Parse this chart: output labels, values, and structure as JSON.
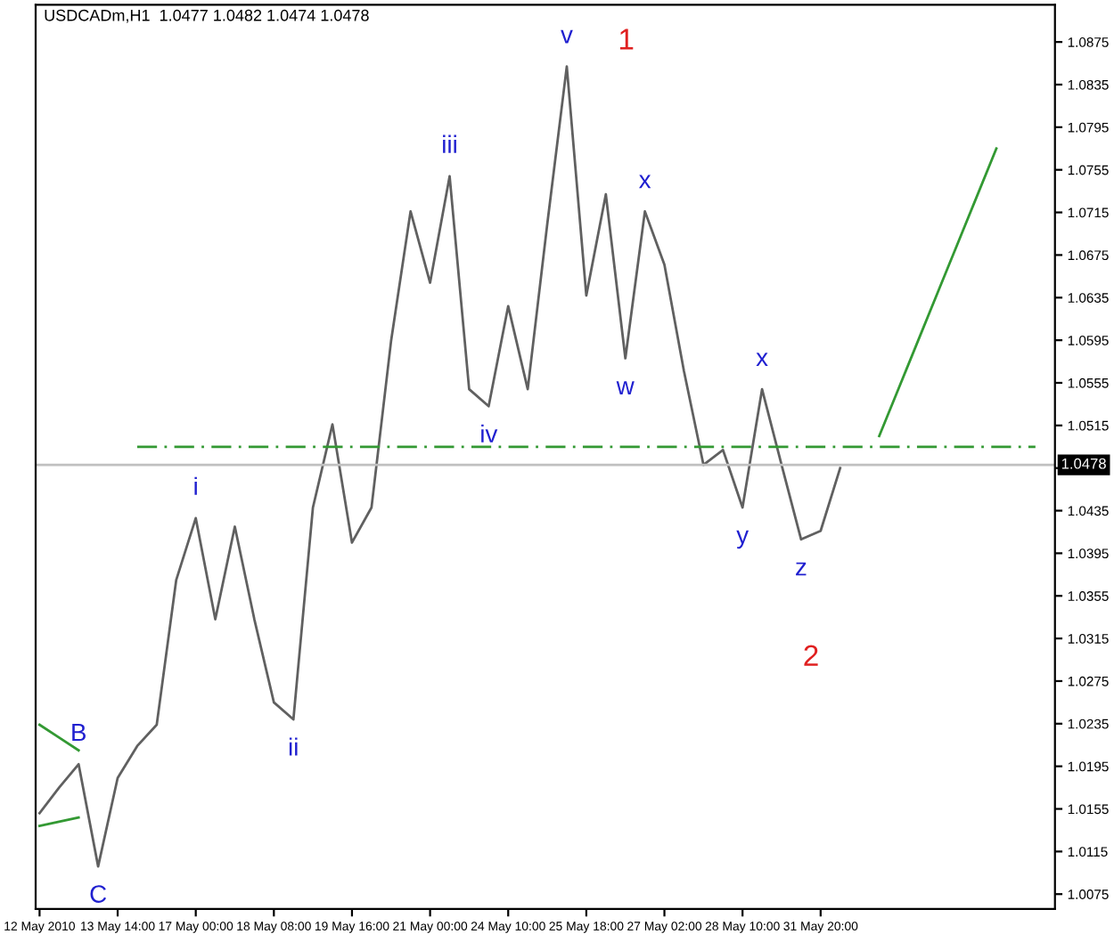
{
  "chart_data": {
    "type": "line",
    "title": "USDCADm,H1  1.0477 1.0482 1.0474 1.0478",
    "categories": [
      "12 May 2010",
      null,
      null,
      null,
      "13 May 14:00",
      null,
      null,
      null,
      "17 May 00:00",
      null,
      null,
      null,
      "18 May 08:00",
      null,
      null,
      null,
      "19 May 16:00",
      null,
      null,
      null,
      "21 May 00:00",
      null,
      null,
      null,
      "24 May 10:00",
      null,
      null,
      null,
      "25 May 18:00",
      null,
      null,
      null,
      "27 May 02:00",
      null,
      null,
      null,
      "28 May 10:00",
      null,
      null,
      null,
      "31 May 20:00",
      null,
      null,
      null,
      null,
      null,
      null,
      null,
      null,
      null,
      null,
      null
    ],
    "series": [
      {
        "color": "#606060",
        "values": [
          1.0151,
          1.0175,
          1.0197,
          1.0101,
          1.0184,
          1.0214,
          1.0234,
          1.037,
          1.0428,
          1.0333,
          1.042,
          1.0333,
          1.0255,
          1.0239,
          1.0438,
          1.0516,
          1.0405,
          1.0438,
          1.0594,
          1.0716,
          1.0649,
          1.0749,
          1.0549,
          1.0533,
          1.0627,
          1.0549,
          1.0704,
          1.0852,
          1.0637,
          1.0732,
          1.0578,
          1.0716,
          1.0666,
          1.0566,
          1.0478,
          1.0492,
          1.0438,
          1.0549,
          1.0478,
          1.0408,
          1.0416,
          1.0475,
          null,
          null,
          null,
          null,
          null,
          null,
          null,
          null,
          null,
          null
        ]
      },
      {
        "color": "#339933",
        "line_style": "dashed",
        "values": [
          null,
          null,
          null,
          null,
          null,
          1.0495,
          1.0495,
          1.0495,
          1.0495,
          1.0495,
          1.0495,
          1.0495,
          1.0495,
          1.0495,
          1.0495,
          1.0495,
          1.0495,
          1.0495,
          1.0495,
          1.0495,
          1.0495,
          1.0495,
          1.0495,
          1.0495,
          1.0495,
          1.0495,
          1.0495,
          1.0495,
          1.0495,
          1.0495,
          1.0495,
          1.0495,
          1.0495,
          1.0495,
          1.0495,
          1.0495,
          1.0495,
          1.0495,
          1.0495,
          1.0495,
          1.0495,
          1.0495,
          1.0495,
          1.0495,
          1.0495,
          1.0495,
          1.0495,
          1.0495,
          1.0495,
          1.0495,
          1.0495,
          1.0495
        ]
      },
      {
        "color": "#339933",
        "values": [
          null,
          null,
          null,
          null,
          null,
          null,
          null,
          null,
          null,
          null,
          null,
          null,
          null,
          null,
          null,
          null,
          null,
          null,
          null,
          null,
          null,
          null,
          null,
          null,
          null,
          null,
          null,
          null,
          null,
          null,
          null,
          null,
          null,
          null,
          null,
          null,
          null,
          null,
          null,
          null,
          null,
          null,
          null,
          1.0505,
          1.055,
          1.0595,
          1.064,
          1.0685,
          1.073,
          1.0775,
          null,
          null
        ]
      },
      {
        "color": "#339933",
        "values": [
          1.0234,
          1.0222,
          1.021,
          null,
          null,
          null,
          null,
          null,
          null,
          null,
          null,
          null,
          null,
          null,
          null,
          null,
          null,
          null,
          null,
          null,
          null,
          null,
          null,
          null,
          null,
          null,
          null,
          null,
          null,
          null,
          null,
          null,
          null,
          null,
          null,
          null,
          null,
          null,
          null,
          null,
          null,
          null,
          null,
          null,
          null,
          null,
          null,
          null,
          null,
          null,
          null,
          null
        ]
      },
      {
        "color": "#339933",
        "values": [
          1.0139,
          1.0143,
          1.0147,
          null,
          null,
          null,
          null,
          null,
          null,
          null,
          null,
          null,
          null,
          null,
          null,
          null,
          null,
          null,
          null,
          null,
          null,
          null,
          null,
          null,
          null,
          null,
          null,
          null,
          null,
          null,
          null,
          null,
          null,
          null,
          null,
          null,
          null,
          null,
          null,
          null,
          null,
          null,
          null,
          null,
          null,
          null,
          null,
          null,
          null,
          null,
          null,
          null
        ]
      }
    ],
    "ref_lines": [
      {
        "axis": "y",
        "value": 1.0478,
        "label": "1.0478",
        "color": "#c0c0c0"
      }
    ],
    "annotations": [
      {
        "text": "v",
        "y": 1.0852
      },
      "1",
      {
        "text": "iii",
        "y": 1.0749
      },
      {
        "text": "iv",
        "y": 1.0533
      },
      {
        "text": "i",
        "y": 1.0428
      },
      {
        "text": "ii",
        "y": 1.0239
      },
      {
        "text": "B",
        "y": 1.0197
      },
      {
        "text": "C",
        "y": 1.0101
      },
      {
        "text": "x",
        "y": 1.0716
      },
      {
        "text": "w",
        "y": 1.0578
      },
      {
        "text": "x",
        "y": 1.0549
      },
      {
        "text": "y",
        "y": 1.0438
      },
      {
        "text": "z",
        "y": 1.0408
      },
      "2"
    ],
    "ylim": [
      1.0061,
      1.091
    ],
    "yticks": [
      1.0075,
      1.0115,
      1.0155,
      1.0195,
      1.0235,
      1.0275,
      1.0315,
      1.0355,
      1.0395,
      1.0435,
      {
        "value": 1.0475,
        "label": null
      },
      1.0515,
      1.0555,
      1.0595,
      1.0635,
      1.0675,
      1.0715,
      1.0755,
      1.0795,
      1.0835,
      1.0875
    ],
    "grid": false,
    "legend": false
  }
}
